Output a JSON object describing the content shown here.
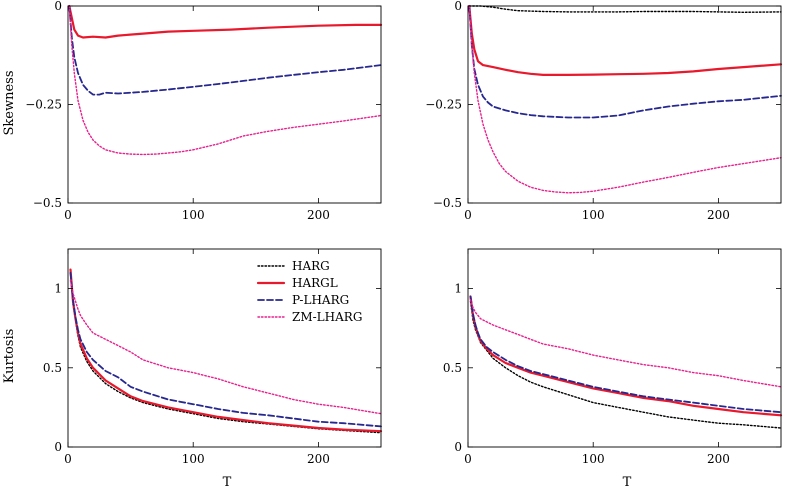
{
  "chart_data": [
    {
      "type": "line",
      "panel": "top-left",
      "ylabel": "Skewness",
      "xlabel": "",
      "xlim": [
        0,
        250
      ],
      "ylim": [
        -0.5,
        0
      ],
      "xticks": [
        0,
        100,
        200
      ],
      "yticks": [
        -0.5,
        -0.25,
        0
      ],
      "ytick_labels": [
        "−0.5",
        "−0.25",
        "0"
      ],
      "series": [
        {
          "name": "HARGL",
          "x": [
            1,
            3,
            5,
            8,
            12,
            20,
            30,
            40,
            60,
            80,
            100,
            130,
            160,
            200,
            230,
            250
          ],
          "values": [
            0,
            -0.03,
            -0.06,
            -0.075,
            -0.08,
            -0.078,
            -0.08,
            -0.075,
            -0.07,
            -0.065,
            -0.063,
            -0.06,
            -0.055,
            -0.05,
            -0.048,
            -0.048
          ]
        },
        {
          "name": "P-LHARG",
          "x": [
            1,
            3,
            5,
            8,
            12,
            16,
            20,
            25,
            30,
            40,
            50,
            60,
            80,
            100,
            120,
            140,
            160,
            180,
            200,
            220,
            250
          ],
          "values": [
            0,
            -0.08,
            -0.13,
            -0.17,
            -0.2,
            -0.215,
            -0.225,
            -0.225,
            -0.22,
            -0.222,
            -0.22,
            -0.218,
            -0.212,
            -0.205,
            -0.198,
            -0.19,
            -0.182,
            -0.175,
            -0.168,
            -0.162,
            -0.15
          ]
        },
        {
          "name": "ZM-LHARG",
          "x": [
            1,
            3,
            5,
            8,
            12,
            16,
            20,
            25,
            30,
            40,
            50,
            60,
            70,
            80,
            90,
            100,
            120,
            140,
            160,
            180,
            200,
            220,
            250
          ],
          "values": [
            0,
            -0.1,
            -0.17,
            -0.24,
            -0.29,
            -0.32,
            -0.34,
            -0.355,
            -0.365,
            -0.373,
            -0.376,
            -0.377,
            -0.376,
            -0.373,
            -0.37,
            -0.365,
            -0.35,
            -0.33,
            -0.318,
            -0.308,
            -0.3,
            -0.292,
            -0.278
          ]
        }
      ]
    },
    {
      "type": "line",
      "panel": "top-right",
      "ylabel": "",
      "xlabel": "",
      "xlim": [
        0,
        250
      ],
      "ylim": [
        -0.5,
        0
      ],
      "xticks": [
        0,
        100,
        200
      ],
      "yticks": [
        -0.5,
        -0.25,
        0
      ],
      "ytick_labels": [
        "−0.5",
        "−0.25",
        "0"
      ],
      "series": [
        {
          "name": "HARG",
          "x": [
            1,
            10,
            20,
            30,
            40,
            60,
            80,
            100,
            120,
            140,
            160,
            180,
            200,
            220,
            250
          ],
          "values": [
            0,
            0,
            -0.003,
            -0.008,
            -0.012,
            -0.014,
            -0.015,
            -0.015,
            -0.015,
            -0.014,
            -0.014,
            -0.014,
            -0.015,
            -0.016,
            -0.015
          ]
        },
        {
          "name": "HARGL",
          "x": [
            1,
            3,
            5,
            8,
            12,
            20,
            30,
            40,
            50,
            60,
            80,
            100,
            120,
            140,
            160,
            180,
            200,
            220,
            250
          ],
          "values": [
            0,
            -0.07,
            -0.11,
            -0.14,
            -0.15,
            -0.155,
            -0.162,
            -0.168,
            -0.172,
            -0.175,
            -0.175,
            -0.174,
            -0.173,
            -0.172,
            -0.17,
            -0.166,
            -0.16,
            -0.155,
            -0.148
          ]
        },
        {
          "name": "P-LHARG",
          "x": [
            1,
            3,
            5,
            8,
            12,
            16,
            20,
            30,
            40,
            50,
            60,
            80,
            100,
            120,
            140,
            160,
            180,
            200,
            220,
            250
          ],
          "values": [
            0,
            -0.1,
            -0.16,
            -0.2,
            -0.23,
            -0.245,
            -0.255,
            -0.265,
            -0.272,
            -0.277,
            -0.28,
            -0.283,
            -0.283,
            -0.278,
            -0.265,
            -0.255,
            -0.248,
            -0.242,
            -0.238,
            -0.228
          ]
        },
        {
          "name": "ZM-LHARG",
          "x": [
            1,
            3,
            5,
            8,
            12,
            16,
            20,
            25,
            30,
            40,
            50,
            60,
            70,
            80,
            90,
            100,
            120,
            140,
            160,
            180,
            200,
            220,
            250
          ],
          "values": [
            0,
            -0.1,
            -0.17,
            -0.24,
            -0.3,
            -0.34,
            -0.37,
            -0.4,
            -0.42,
            -0.445,
            -0.46,
            -0.468,
            -0.472,
            -0.474,
            -0.473,
            -0.47,
            -0.46,
            -0.447,
            -0.435,
            -0.422,
            -0.41,
            -0.4,
            -0.385
          ]
        }
      ]
    },
    {
      "type": "line",
      "panel": "bottom-left",
      "ylabel": "Kurtosis",
      "xlabel": "T",
      "xlim": [
        0,
        250
      ],
      "ylim": [
        0,
        1.25
      ],
      "xticks": [
        0,
        100,
        200
      ],
      "yticks": [
        0,
        0.5,
        1
      ],
      "ytick_labels": [
        "0",
        "0.5",
        "1"
      ],
      "legend_position": "top-right",
      "series": [
        {
          "name": "HARG",
          "x": [
            2,
            4,
            6,
            8,
            10,
            15,
            20,
            30,
            40,
            50,
            60,
            80,
            100,
            120,
            140,
            160,
            180,
            200,
            220,
            250
          ],
          "values": [
            1.1,
            0.9,
            0.8,
            0.7,
            0.63,
            0.54,
            0.48,
            0.4,
            0.35,
            0.31,
            0.28,
            0.24,
            0.21,
            0.18,
            0.16,
            0.145,
            0.13,
            0.115,
            0.105,
            0.09
          ]
        },
        {
          "name": "HARGL",
          "x": [
            2,
            4,
            6,
            8,
            10,
            15,
            20,
            30,
            40,
            50,
            60,
            80,
            100,
            120,
            140,
            160,
            180,
            200,
            220,
            250
          ],
          "values": [
            1.12,
            0.92,
            0.81,
            0.72,
            0.65,
            0.56,
            0.5,
            0.42,
            0.37,
            0.32,
            0.29,
            0.25,
            0.22,
            0.19,
            0.17,
            0.15,
            0.135,
            0.12,
            0.11,
            0.1
          ]
        },
        {
          "name": "P-LHARG",
          "x": [
            2,
            4,
            6,
            8,
            10,
            15,
            20,
            30,
            40,
            50,
            60,
            80,
            100,
            120,
            140,
            160,
            180,
            200,
            220,
            250
          ],
          "values": [
            1.1,
            0.93,
            0.82,
            0.74,
            0.68,
            0.6,
            0.55,
            0.48,
            0.44,
            0.38,
            0.35,
            0.3,
            0.27,
            0.24,
            0.215,
            0.2,
            0.18,
            0.16,
            0.15,
            0.13
          ]
        },
        {
          "name": "ZM-LHARG",
          "x": [
            2,
            4,
            6,
            8,
            10,
            15,
            20,
            30,
            40,
            50,
            60,
            80,
            100,
            120,
            140,
            160,
            180,
            200,
            220,
            250
          ],
          "values": [
            1.05,
            0.97,
            0.92,
            0.87,
            0.83,
            0.77,
            0.72,
            0.68,
            0.64,
            0.6,
            0.55,
            0.5,
            0.47,
            0.43,
            0.38,
            0.34,
            0.3,
            0.27,
            0.25,
            0.21
          ]
        }
      ]
    },
    {
      "type": "line",
      "panel": "bottom-right",
      "ylabel": "",
      "xlabel": "T",
      "xlim": [
        0,
        250
      ],
      "ylim": [
        0,
        1.25
      ],
      "xticks": [
        0,
        100,
        200
      ],
      "yticks": [
        0,
        0.5,
        1
      ],
      "ytick_labels": [
        "0",
        "0.5",
        "1"
      ],
      "series": [
        {
          "name": "HARG",
          "x": [
            2,
            4,
            6,
            8,
            10,
            15,
            20,
            30,
            40,
            50,
            60,
            80,
            100,
            120,
            140,
            160,
            180,
            200,
            220,
            250
          ],
          "values": [
            0.92,
            0.8,
            0.74,
            0.7,
            0.66,
            0.61,
            0.56,
            0.5,
            0.45,
            0.41,
            0.38,
            0.33,
            0.28,
            0.25,
            0.22,
            0.19,
            0.17,
            0.15,
            0.14,
            0.12
          ]
        },
        {
          "name": "HARGL",
          "x": [
            2,
            4,
            6,
            8,
            10,
            15,
            20,
            30,
            40,
            50,
            60,
            80,
            100,
            120,
            140,
            160,
            180,
            200,
            220,
            250
          ],
          "values": [
            0.95,
            0.83,
            0.76,
            0.71,
            0.67,
            0.62,
            0.58,
            0.53,
            0.5,
            0.47,
            0.45,
            0.41,
            0.37,
            0.34,
            0.31,
            0.29,
            0.26,
            0.24,
            0.22,
            0.2
          ]
        },
        {
          "name": "P-LHARG",
          "x": [
            2,
            4,
            6,
            8,
            10,
            15,
            20,
            30,
            40,
            50,
            60,
            80,
            100,
            120,
            140,
            160,
            180,
            200,
            220,
            250
          ],
          "values": [
            0.95,
            0.84,
            0.77,
            0.72,
            0.68,
            0.63,
            0.6,
            0.55,
            0.51,
            0.48,
            0.46,
            0.42,
            0.38,
            0.35,
            0.32,
            0.3,
            0.28,
            0.26,
            0.24,
            0.22
          ]
        },
        {
          "name": "ZM-LHARG",
          "x": [
            2,
            4,
            6,
            8,
            10,
            15,
            20,
            30,
            40,
            50,
            60,
            80,
            100,
            120,
            140,
            160,
            180,
            200,
            220,
            250
          ],
          "values": [
            0.93,
            0.88,
            0.85,
            0.83,
            0.81,
            0.79,
            0.77,
            0.74,
            0.71,
            0.68,
            0.65,
            0.62,
            0.58,
            0.55,
            0.52,
            0.5,
            0.47,
            0.45,
            0.42,
            0.38
          ]
        }
      ]
    }
  ],
  "legend": {
    "entries": [
      "HARG",
      "HARGL",
      "P-LHARG",
      "ZM-LHARG"
    ]
  },
  "series_styles": {
    "HARG": {
      "color": "#000000",
      "dash": "dotted"
    },
    "HARGL": {
      "color": "#e8192c",
      "dash": "solid"
    },
    "P-LHARG": {
      "color": "#27288f",
      "dash": "dashed"
    },
    "ZM-LHARG": {
      "color": "#e8208e",
      "dash": "dotted"
    }
  }
}
